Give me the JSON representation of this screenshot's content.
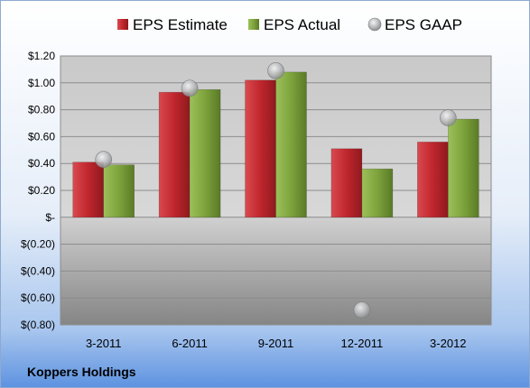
{
  "company": "Koppers Holdings",
  "colors": {
    "estimate": "#c0262d",
    "actual": "#7da33c",
    "gaap": "#a7a9ac"
  },
  "chart_data": {
    "type": "bar",
    "categories": [
      "3-2011",
      "6-2011",
      "9-2011",
      "12-2011",
      "3-2012"
    ],
    "series": [
      {
        "name": "EPS Estimate",
        "values": [
          0.41,
          0.93,
          1.02,
          0.51,
          0.56
        ]
      },
      {
        "name": "EPS Actual",
        "values": [
          0.39,
          0.95,
          1.08,
          0.36,
          0.73
        ]
      },
      {
        "name": "EPS GAAP",
        "values": [
          0.43,
          0.96,
          1.09,
          -0.69,
          0.74
        ]
      }
    ],
    "ylim": [
      -0.8,
      1.2
    ],
    "yticks": [
      "$1.20",
      "$1.00",
      "$0.80",
      "$0.60",
      "$0.40",
      "$0.20",
      "$-",
      "$(0.20)",
      "$(0.40)",
      "$(0.60)",
      "$(0.80)"
    ],
    "legend_position": "top",
    "grid": true
  }
}
